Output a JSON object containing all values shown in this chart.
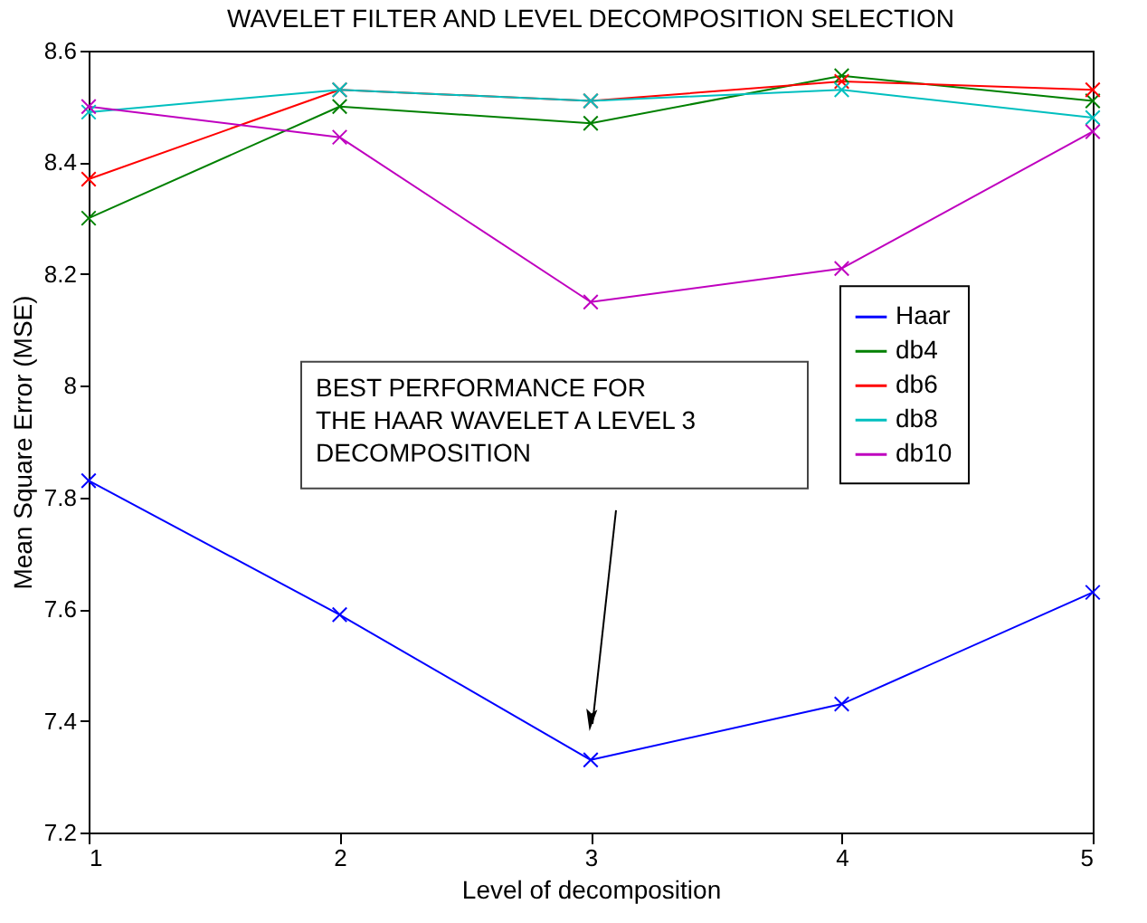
{
  "chart_data": {
    "type": "line",
    "title": "WAVELET FILTER AND LEVEL DECOMPOSITION SELECTION",
    "xlabel": "Level of decomposition",
    "ylabel": "Mean Square Error (MSE)",
    "x": [
      1,
      2,
      3,
      4,
      5
    ],
    "series": [
      {
        "name": "Haar",
        "color": "#0000ff",
        "values": [
          7.83,
          7.59,
          7.33,
          7.43,
          7.63
        ]
      },
      {
        "name": "db4",
        "color": "#008000",
        "values": [
          8.3,
          8.5,
          8.47,
          8.555,
          8.51
        ]
      },
      {
        "name": "db6",
        "color": "#ff0000",
        "values": [
          8.37,
          8.53,
          8.51,
          8.545,
          8.53
        ]
      },
      {
        "name": "db8",
        "color": "#00bfbf",
        "values": [
          8.49,
          8.53,
          8.51,
          8.53,
          8.48
        ]
      },
      {
        "name": "db10",
        "color": "#bf00bf",
        "values": [
          8.5,
          8.445,
          8.15,
          8.21,
          8.455
        ]
      }
    ],
    "xlim": [
      1,
      5
    ],
    "xticks": [
      1,
      2,
      3,
      4,
      5
    ],
    "ylim": [
      7.2,
      8.6
    ],
    "yticks": [
      7.2,
      7.4,
      7.6,
      7.8,
      {
        "value": 8,
        "label": "8"
      },
      8.2,
      8.4,
      8.6
    ],
    "grid": false,
    "legend": "right",
    "marker": "cross",
    "line_style": "solid",
    "annotations": [
      "BEST PERFORMANCE FOR\nTHE HAAR WAVELET A LEVEL 3\nDECOMPOSITION"
    ]
  }
}
